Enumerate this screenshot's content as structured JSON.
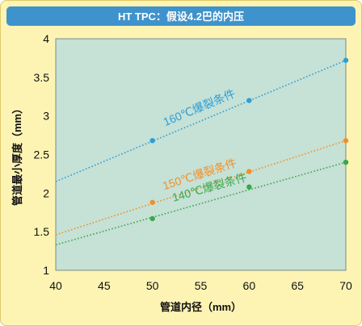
{
  "chart_data": {
    "type": "line",
    "title": "HT TPC：假设4.2巴的内压",
    "xlabel": "管道内径（mm）",
    "ylabel": "管道最小厚度（mm）",
    "xlim": [
      40,
      70
    ],
    "ylim": [
      1,
      4
    ],
    "xticks": [
      40,
      45,
      50,
      55,
      60,
      65,
      70
    ],
    "yticks": [
      1,
      1.5,
      2,
      2.5,
      3,
      3.5,
      4
    ],
    "xtick_labels": [
      "40",
      "45",
      "50",
      "55",
      "60",
      "65",
      "70"
    ],
    "ytick_labels": [
      "1",
      "1.5",
      "2",
      "2.5",
      "3",
      "3.5",
      "4"
    ],
    "grid": false,
    "series": [
      {
        "name": "160℃爆裂条件",
        "color": "#2a9fd8",
        "points": [
          [
            50,
            2.68
          ],
          [
            60,
            3.2
          ],
          [
            70,
            3.72
          ]
        ],
        "trend": [
          [
            40,
            2.15
          ],
          [
            70,
            3.72
          ]
        ]
      },
      {
        "name": "150℃爆裂条件",
        "color": "#f0902a",
        "points": [
          [
            50,
            1.88
          ],
          [
            60,
            2.28
          ],
          [
            70,
            2.68
          ]
        ],
        "trend": [
          [
            40,
            1.46
          ],
          [
            70,
            2.68
          ]
        ]
      },
      {
        "name": "140℃爆裂条件",
        "color": "#3aa84a",
        "points": [
          [
            50,
            1.67
          ],
          [
            60,
            2.08
          ],
          [
            70,
            2.4
          ]
        ],
        "trend": [
          [
            40,
            1.33
          ],
          [
            70,
            2.4
          ]
        ]
      }
    ]
  }
}
